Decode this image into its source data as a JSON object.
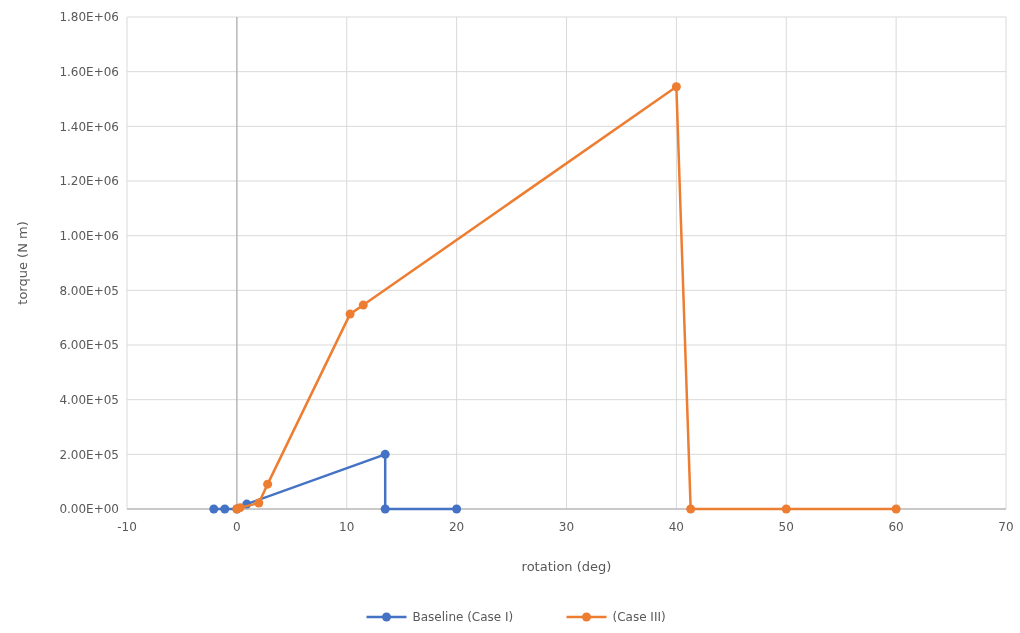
{
  "chart_data": {
    "type": "line",
    "xlabel": "rotation (deg)",
    "ylabel": "torque (N m)",
    "xlim": [
      -10,
      70
    ],
    "xticks": [
      -10,
      0,
      10,
      20,
      30,
      40,
      50,
      60,
      70
    ],
    "ylim": [
      0,
      1800000
    ],
    "yticks": [
      {
        "value": 0,
        "label": "0.00E+00"
      },
      {
        "value": 200000,
        "label": "2.00E+05"
      },
      {
        "value": 400000,
        "label": "4.00E+05"
      },
      {
        "value": 600000,
        "label": "6.00E+05"
      },
      {
        "value": 800000,
        "label": "8.00E+05"
      },
      {
        "value": 1000000,
        "label": "1.00E+06"
      },
      {
        "value": 1200000,
        "label": "1.20E+06"
      },
      {
        "value": 1400000,
        "label": "1.40E+06"
      },
      {
        "value": 1600000,
        "label": "1.60E+06"
      },
      {
        "value": 1800000,
        "label": "1.80E+06"
      }
    ],
    "grid": true,
    "legend": "bottom",
    "marker": "circle",
    "line_style": "solid",
    "series": [
      {
        "name": "Baseline (Case I)",
        "color": "#4472c4",
        "x": [
          -2.1,
          -1.1,
          0,
          0.9,
          13.5,
          13.5,
          20
        ],
        "values": [
          0,
          0,
          0,
          18000,
          200000,
          0,
          0
        ]
      },
      {
        "name": "(Case III)",
        "color": "#ed7d31",
        "x": [
          0,
          0.3,
          2,
          2.8,
          10.3,
          11.5,
          40,
          41.3,
          50,
          60
        ],
        "values": [
          0,
          5000,
          22000,
          91000,
          713000,
          746000,
          1545000,
          0,
          0,
          0
        ]
      }
    ]
  }
}
